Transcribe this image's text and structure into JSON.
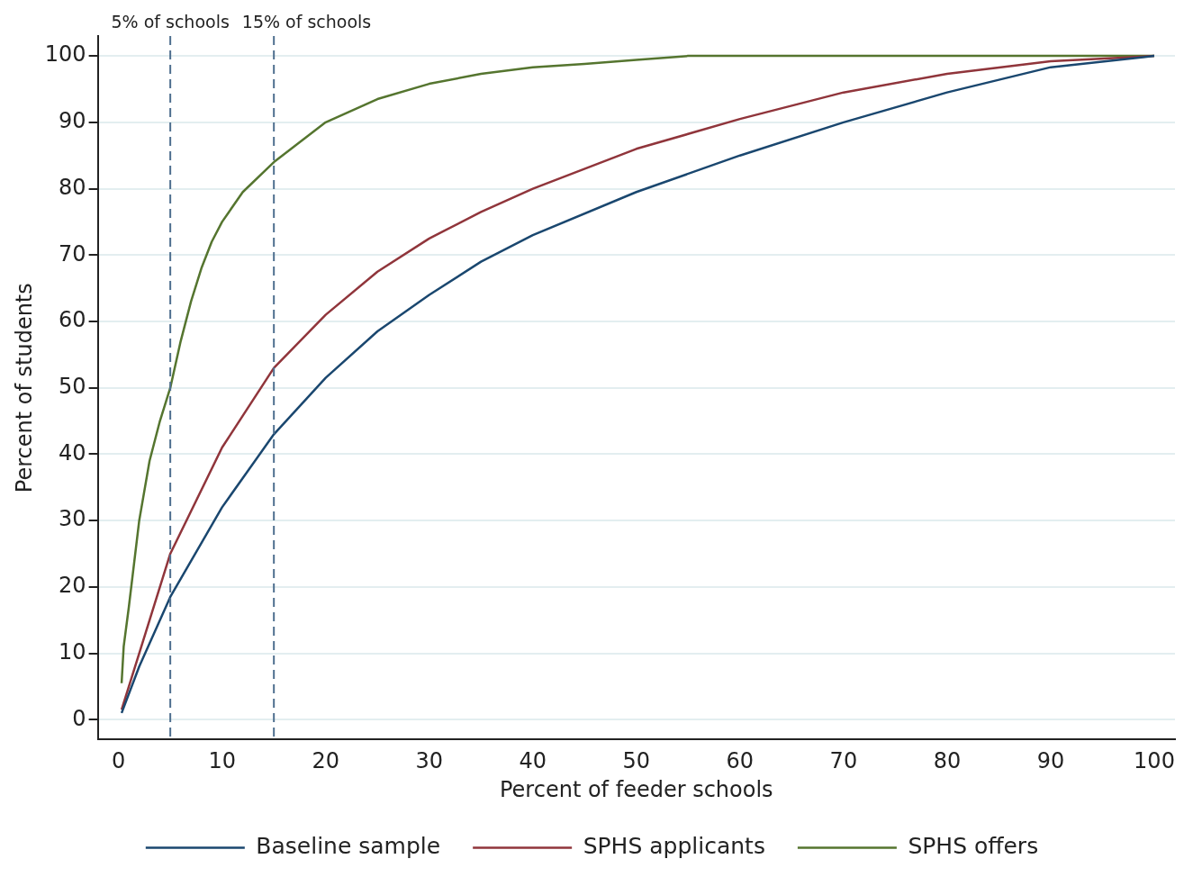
{
  "chart_data": {
    "type": "line",
    "xlabel": "Percent of feeder schools",
    "ylabel": "Percent of students",
    "xlim": [
      -2,
      102
    ],
    "xticks": [
      0,
      10,
      20,
      30,
      40,
      50,
      60,
      70,
      80,
      90,
      100
    ],
    "ylim": [
      -3,
      103
    ],
    "yticks": [
      0,
      10,
      20,
      30,
      40,
      50,
      60,
      70,
      80,
      90,
      100
    ],
    "grid": "y",
    "legend": "bottom",
    "marker": "none",
    "line_style": "solid",
    "ref_lines": [
      {
        "axis": "x",
        "value": 5,
        "label": "5% of schools",
        "color": "#4f6f8f",
        "line_style": "dashed"
      },
      {
        "axis": "x",
        "value": 15,
        "label": "15% of schools",
        "color": "#4f6f8f",
        "line_style": "dashed"
      }
    ],
    "series": [
      {
        "name": "Baseline sample",
        "color": "#1a476f",
        "x": [
          0.3,
          2,
          5,
          10,
          15,
          20,
          25,
          30,
          35,
          40,
          50,
          60,
          70,
          80,
          90,
          100
        ],
        "values": [
          1,
          8,
          18.5,
          32,
          43,
          51.5,
          58.5,
          64,
          69,
          73,
          79.5,
          85,
          90,
          94.5,
          98.3,
          100
        ]
      },
      {
        "name": "SPHS applicants",
        "color": "#90353b",
        "x": [
          0.3,
          2,
          5,
          10,
          15,
          20,
          25,
          30,
          35,
          40,
          50,
          60,
          70,
          80,
          90,
          100
        ],
        "values": [
          1.5,
          10,
          25,
          41,
          53,
          61,
          67.5,
          72.5,
          76.5,
          80,
          86,
          90.5,
          94.5,
          97.3,
          99.2,
          100
        ]
      },
      {
        "name": "SPHS offers",
        "color": "#55752f",
        "x": [
          0.3,
          0.5,
          1,
          2,
          3,
          4,
          5,
          6,
          7,
          8,
          9,
          10,
          12,
          15,
          20,
          25,
          30,
          35,
          40,
          45,
          50,
          55,
          100
        ],
        "values": [
          5.5,
          11,
          17,
          30,
          39,
          45,
          50,
          57,
          63,
          68,
          72,
          75,
          79.5,
          84,
          90,
          93.5,
          95.8,
          97.3,
          98.3,
          98.8,
          99.4,
          100,
          100
        ]
      }
    ]
  }
}
